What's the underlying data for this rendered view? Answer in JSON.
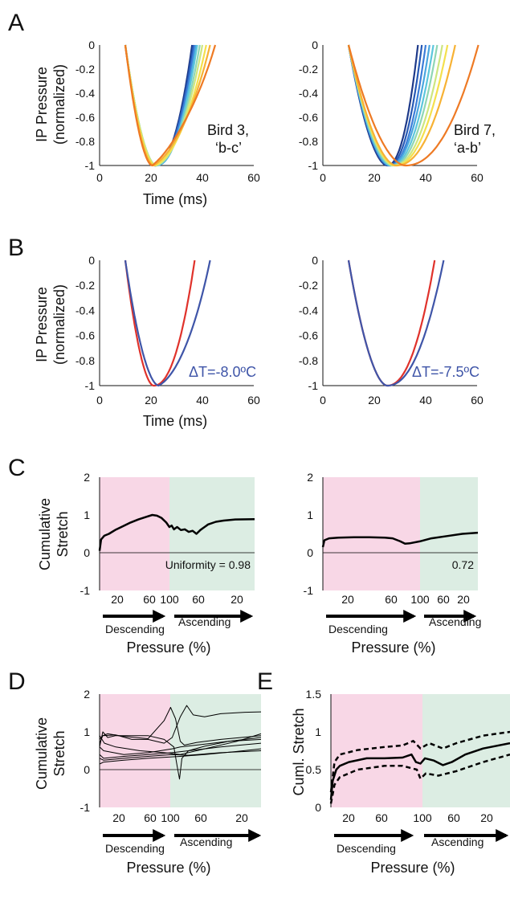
{
  "colors": {
    "blue": "#3f55a8",
    "red": "#e0322b",
    "descending_shade": "#f8d7e6",
    "ascending_shade": "#dcede3",
    "traces": [
      "#1e3a8a",
      "#2659b5",
      "#3b7dd8",
      "#4aa6df",
      "#5cc6dc",
      "#8fd6b4",
      "#cde680",
      "#f4e04d",
      "#f7b234",
      "#ee7a24"
    ]
  },
  "labels": {
    "panel_a": "A",
    "panel_b": "B",
    "panel_c": "C",
    "panel_d": "D",
    "panel_e": "E",
    "ip_pressure_line1": "IP Pressure",
    "ip_pressure_line2": "(normalized)",
    "time_ms": "Time (ms)",
    "cumulative_line1": "Cumulative",
    "cumulative_line2": "Stretch",
    "cuml_stretch": "Cuml. Stretch",
    "pressure_pct": "Pressure (%)",
    "descending": "Descending",
    "ascending": "Ascending",
    "bird3_line1": "Bird 3,",
    "bird3_line2": "‘b-c’",
    "bird7_line1": "Bird 7,",
    "bird7_line2": "‘a-b’",
    "delta_left": "ΔT=-8.0ºC",
    "delta_right": "ΔT=-7.5ºC",
    "uniformity_left": "Uniformity = 0.98",
    "uniformity_right": "0.72"
  },
  "chart_data": [
    {
      "id": "A-left",
      "type": "line",
      "xlabel": "Time (ms)",
      "ylabel": "IP Pressure (normalized)",
      "xlim": [
        0,
        60
      ],
      "ylim": [
        -1,
        0
      ],
      "xticks": [
        "0",
        "20",
        "40",
        "60"
      ],
      "yticks": [
        "0",
        "-0.2",
        "-0.4",
        "-0.6",
        "-0.8",
        "-1"
      ],
      "annotation": [
        "Bird 3,",
        "‘b-c’"
      ],
      "series": [
        {
          "start": 10,
          "min_x": 21.5,
          "end": 36.0,
          "bend": 0.0
        },
        {
          "start": 10,
          "min_x": 21.5,
          "end": 36.5,
          "bend": 0.0
        },
        {
          "start": 10,
          "min_x": 21.5,
          "end": 37.0,
          "bend": 0.0
        },
        {
          "start": 10,
          "min_x": 22.0,
          "end": 37.5,
          "bend": 0.0
        },
        {
          "start": 10,
          "min_x": 22.0,
          "end": 38.0,
          "bend": 0.01
        },
        {
          "start": 10,
          "min_x": 22.0,
          "end": 39.0,
          "bend": 0.02
        },
        {
          "start": 10,
          "min_x": 22.0,
          "end": 40.0,
          "bend": 0.03
        },
        {
          "start": 10,
          "min_x": 21.5,
          "end": 41.5,
          "bend": 0.04
        },
        {
          "start": 10,
          "min_x": 21.0,
          "end": 43.0,
          "bend": 0.06
        },
        {
          "start": 10,
          "min_x": 20.5,
          "end": 45.0,
          "bend": 0.09
        }
      ]
    },
    {
      "id": "A-right",
      "type": "line",
      "xlabel": "",
      "ylabel": "",
      "xlim": [
        0,
        60
      ],
      "ylim": [
        -1,
        0
      ],
      "xticks": [
        "0",
        "20",
        "40",
        "60"
      ],
      "yticks": [
        "0",
        "-0.2",
        "-0.4",
        "-0.6",
        "-0.8",
        "-1"
      ],
      "annotation": [
        "Bird 7,",
        "‘a-b’"
      ],
      "series": [
        {
          "start": 10,
          "min_x": 25.0,
          "end": 37.0,
          "bend": 0.0
        },
        {
          "start": 10,
          "min_x": 25.5,
          "end": 38.5,
          "bend": 0.0
        },
        {
          "start": 10,
          "min_x": 26.0,
          "end": 40.0,
          "bend": 0.0
        },
        {
          "start": 10,
          "min_x": 26.0,
          "end": 41.5,
          "bend": 0.0
        },
        {
          "start": 10,
          "min_x": 26.5,
          "end": 43.0,
          "bend": 0.0
        },
        {
          "start": 10,
          "min_x": 27.0,
          "end": 44.5,
          "bend": 0.0
        },
        {
          "start": 10,
          "min_x": 27.5,
          "end": 46.5,
          "bend": 0.0
        },
        {
          "start": 10,
          "min_x": 28.0,
          "end": 48.5,
          "bend": 0.0
        },
        {
          "start": 10,
          "min_x": 28.5,
          "end": 51.5,
          "bend": 0.0
        },
        {
          "start": 10,
          "min_x": 32.0,
          "end": 60.5,
          "bend": 0.0
        }
      ]
    },
    {
      "id": "B-left",
      "type": "line",
      "xlabel": "Time (ms)",
      "ylabel": "IP Pressure (normalized)",
      "xlim": [
        0,
        60
      ],
      "ylim": [
        -1,
        0
      ],
      "xticks": [
        "0",
        "20",
        "40",
        "60"
      ],
      "yticks": [
        "0",
        "-0.2",
        "-0.4",
        "-0.6",
        "-0.8",
        "-1"
      ],
      "annotation": "ΔT=-8.0ºC",
      "series": [
        {
          "color": "red",
          "start": 10,
          "min_x": 21.0,
          "end": 37.0,
          "bend": 0.0
        },
        {
          "color": "blue",
          "start": 10,
          "min_x": 23.0,
          "end": 43.0,
          "bend": 0.05
        }
      ]
    },
    {
      "id": "B-right",
      "type": "line",
      "xlabel": "",
      "ylabel": "",
      "xlim": [
        0,
        60
      ],
      "ylim": [
        -1,
        0
      ],
      "xticks": [
        "0",
        "20",
        "40",
        "60"
      ],
      "yticks": [
        "0",
        "-0.2",
        "-0.4",
        "-0.6",
        "-0.8",
        "-1"
      ],
      "annotation": "ΔT=-7.5ºC",
      "series": [
        {
          "color": "red",
          "start": 10,
          "min_x": 25.0,
          "end": 43.5,
          "bend": 0.0
        },
        {
          "color": "blue",
          "start": 10,
          "min_x": 25.0,
          "end": 47.0,
          "bend": 0.0
        }
      ]
    },
    {
      "id": "C-left",
      "type": "line",
      "xlabel": "Pressure (%)",
      "ylabel": "Cumulative Stretch",
      "xlim": [
        0,
        200
      ],
      "ylim": [
        -1,
        2
      ],
      "xticks": [
        "20",
        "60",
        "100",
        "60",
        "20"
      ],
      "yticks": [
        "2",
        "1",
        "0",
        "-1"
      ],
      "regions": [
        "Descending",
        "Ascending"
      ],
      "annotation": "Uniformity = 0.98",
      "series": [
        {
          "points": [
            [
              0,
              0.05
            ],
            [
              2,
              0.35
            ],
            [
              6,
              0.45
            ],
            [
              12,
              0.5
            ],
            [
              20,
              0.6
            ],
            [
              30,
              0.7
            ],
            [
              40,
              0.8
            ],
            [
              50,
              0.88
            ],
            [
              60,
              0.95
            ],
            [
              68,
              1.0
            ],
            [
              74,
              0.98
            ],
            [
              80,
              0.92
            ],
            [
              86,
              0.8
            ],
            [
              90,
              0.68
            ],
            [
              93,
              0.72
            ],
            [
              96,
              0.62
            ],
            [
              100,
              0.68
            ],
            [
              105,
              0.6
            ],
            [
              110,
              0.62
            ],
            [
              115,
              0.55
            ],
            [
              120,
              0.58
            ],
            [
              125,
              0.5
            ],
            [
              130,
              0.6
            ],
            [
              140,
              0.75
            ],
            [
              150,
              0.82
            ],
            [
              160,
              0.85
            ],
            [
              175,
              0.88
            ],
            [
              200,
              0.89
            ]
          ]
        }
      ]
    },
    {
      "id": "C-right",
      "type": "line",
      "xlabel": "Pressure (%)",
      "ylabel": "",
      "xlim": [
        0,
        200
      ],
      "ylim": [
        -1,
        2
      ],
      "xticks": [
        "20",
        "60",
        "100",
        "60",
        "20"
      ],
      "yticks": [
        "2",
        "1",
        "0",
        "-1"
      ],
      "regions": [
        "Descending",
        "Ascending"
      ],
      "annotation": "0.72",
      "series": [
        {
          "points": [
            [
              0,
              0.15
            ],
            [
              2,
              0.33
            ],
            [
              8,
              0.38
            ],
            [
              20,
              0.4
            ],
            [
              40,
              0.41
            ],
            [
              60,
              0.41
            ],
            [
              80,
              0.4
            ],
            [
              90,
              0.38
            ],
            [
              100,
              0.3
            ],
            [
              106,
              0.24
            ],
            [
              112,
              0.25
            ],
            [
              125,
              0.3
            ],
            [
              140,
              0.38
            ],
            [
              160,
              0.44
            ],
            [
              180,
              0.5
            ],
            [
              200,
              0.53
            ]
          ]
        }
      ]
    },
    {
      "id": "D",
      "type": "line",
      "xlabel": "Pressure (%)",
      "ylabel": "Cumulative Stretch",
      "xlim": [
        0,
        200
      ],
      "ylim": [
        -1,
        2
      ],
      "xticks": [
        "20",
        "60",
        "100",
        "60",
        "20"
      ],
      "yticks": [
        "2",
        "1",
        "0",
        "-1"
      ],
      "regions": [
        "Descending",
        "Ascending"
      ],
      "series": [
        {
          "points": [
            [
              0,
              0.6
            ],
            [
              4,
              1.0
            ],
            [
              10,
              0.85
            ],
            [
              20,
              0.9
            ],
            [
              40,
              0.9
            ],
            [
              60,
              0.9
            ],
            [
              80,
              0.8
            ],
            [
              92,
              0.6
            ],
            [
              96,
              0.1
            ],
            [
              99,
              -0.25
            ],
            [
              102,
              0.3
            ],
            [
              110,
              0.5
            ],
            [
              130,
              0.62
            ],
            [
              160,
              0.75
            ],
            [
              200,
              0.8
            ]
          ]
        },
        {
          "points": [
            [
              0,
              0.7
            ],
            [
              4,
              0.9
            ],
            [
              10,
              0.95
            ],
            [
              30,
              0.88
            ],
            [
              60,
              0.82
            ],
            [
              80,
              1.3
            ],
            [
              88,
              1.65
            ],
            [
              94,
              1.35
            ],
            [
              100,
              0.75
            ],
            [
              105,
              0.65
            ],
            [
              120,
              0.72
            ],
            [
              150,
              0.8
            ],
            [
              200,
              0.9
            ]
          ]
        },
        {
          "points": [
            [
              0,
              0.8
            ],
            [
              4,
              0.9
            ],
            [
              20,
              0.92
            ],
            [
              40,
              0.8
            ],
            [
              60,
              0.8
            ],
            [
              80,
              0.7
            ],
            [
              90,
              0.85
            ],
            [
              100,
              1.4
            ],
            [
              108,
              1.7
            ],
            [
              116,
              1.45
            ],
            [
              130,
              1.4
            ],
            [
              150,
              1.48
            ],
            [
              180,
              1.52
            ],
            [
              200,
              1.53
            ]
          ]
        },
        {
          "points": [
            [
              0,
              0.6
            ],
            [
              5,
              0.5
            ],
            [
              30,
              0.4
            ],
            [
              60,
              0.45
            ],
            [
              90,
              0.55
            ],
            [
              100,
              0.6
            ],
            [
              120,
              0.65
            ],
            [
              160,
              0.75
            ],
            [
              200,
              0.85
            ]
          ]
        },
        {
          "points": [
            [
              0,
              0.4
            ],
            [
              5,
              0.3
            ],
            [
              30,
              0.35
            ],
            [
              60,
              0.4
            ],
            [
              90,
              0.45
            ],
            [
              110,
              0.5
            ],
            [
              150,
              0.6
            ],
            [
              200,
              0.7
            ]
          ]
        },
        {
          "points": [
            [
              0,
              0.3
            ],
            [
              5,
              0.25
            ],
            [
              30,
              0.3
            ],
            [
              60,
              0.35
            ],
            [
              90,
              0.4
            ],
            [
              110,
              0.38
            ],
            [
              150,
              0.45
            ],
            [
              200,
              0.5
            ]
          ]
        },
        {
          "points": [
            [
              0,
              0.15
            ],
            [
              5,
              0.2
            ],
            [
              30,
              0.25
            ],
            [
              60,
              0.3
            ],
            [
              100,
              0.35
            ],
            [
              130,
              0.4
            ],
            [
              170,
              0.48
            ],
            [
              200,
              0.55
            ]
          ]
        },
        {
          "points": [
            [
              0,
              0.9
            ],
            [
              6,
              0.7
            ],
            [
              20,
              0.6
            ],
            [
              50,
              0.5
            ],
            [
              80,
              0.45
            ],
            [
              100,
              0.4
            ],
            [
              130,
              0.55
            ],
            [
              170,
              0.75
            ],
            [
              200,
              0.95
            ]
          ]
        }
      ]
    },
    {
      "id": "E",
      "type": "line",
      "xlabel": "Pressure (%)",
      "ylabel": "Cuml. Stretch",
      "xlim": [
        0,
        200
      ],
      "ylim": [
        0,
        1.5
      ],
      "xticks": [
        "20",
        "60",
        "100",
        "60",
        "20"
      ],
      "yticks": [
        "1.5",
        "1",
        "0.5",
        "0"
      ],
      "regions": [
        "Descending",
        "Ascending"
      ],
      "series": [
        {
          "style": "solid",
          "points": [
            [
              0,
              0.1
            ],
            [
              2,
              0.35
            ],
            [
              6,
              0.5
            ],
            [
              10,
              0.55
            ],
            [
              20,
              0.6
            ],
            [
              40,
              0.65
            ],
            [
              60,
              0.65
            ],
            [
              80,
              0.66
            ],
            [
              90,
              0.7
            ],
            [
              95,
              0.6
            ],
            [
              100,
              0.58
            ],
            [
              105,
              0.65
            ],
            [
              115,
              0.62
            ],
            [
              125,
              0.56
            ],
            [
              135,
              0.6
            ],
            [
              150,
              0.7
            ],
            [
              170,
              0.78
            ],
            [
              200,
              0.85
            ]
          ]
        },
        {
          "style": "dashed",
          "points": [
            [
              0,
              0.2
            ],
            [
              4,
              0.6
            ],
            [
              10,
              0.7
            ],
            [
              30,
              0.76
            ],
            [
              60,
              0.8
            ],
            [
              80,
              0.82
            ],
            [
              92,
              0.88
            ],
            [
              100,
              0.78
            ],
            [
              110,
              0.85
            ],
            [
              125,
              0.78
            ],
            [
              140,
              0.85
            ],
            [
              170,
              0.95
            ],
            [
              200,
              1.0
            ]
          ]
        },
        {
          "style": "dashed",
          "points": [
            [
              0,
              0.05
            ],
            [
              4,
              0.3
            ],
            [
              10,
              0.4
            ],
            [
              30,
              0.5
            ],
            [
              60,
              0.55
            ],
            [
              80,
              0.55
            ],
            [
              96,
              0.5
            ],
            [
              100,
              0.38
            ],
            [
              106,
              0.45
            ],
            [
              120,
              0.42
            ],
            [
              140,
              0.48
            ],
            [
              170,
              0.6
            ],
            [
              200,
              0.7
            ]
          ]
        }
      ]
    }
  ]
}
